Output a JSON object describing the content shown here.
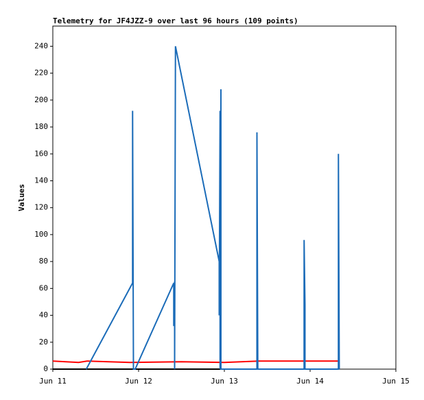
{
  "chart_data": {
    "type": "line",
    "title": "Telemetry for JF4JZZ-9 over last 96 hours (109 points)",
    "ylabel": "Values",
    "xlim": [
      11,
      15
    ],
    "xticks": [
      {
        "value": 11,
        "label": "Jun 11"
      },
      {
        "value": 12,
        "label": "Jun 12"
      },
      {
        "value": 13,
        "label": "Jun 13"
      },
      {
        "value": 14,
        "label": "Jun 14"
      },
      {
        "value": 15,
        "label": "Jun 15"
      }
    ],
    "ylim": [
      0,
      255
    ],
    "yticks": [
      0,
      20,
      40,
      60,
      80,
      100,
      120,
      140,
      160,
      180,
      200,
      220,
      240
    ],
    "series": [
      {
        "color": "#000000",
        "x": [
          11.0,
          14.33
        ],
        "values": [
          0,
          0
        ]
      },
      {
        "color": "#ff0000",
        "x": [
          11.0,
          11.3,
          11.4,
          11.9,
          12.5,
          13.0,
          13.4,
          14.33
        ],
        "values": [
          6,
          5,
          6,
          5,
          5.5,
          5,
          6,
          6
        ]
      },
      {
        "color": "#1a6bb8",
        "x": [
          11.39,
          11.93,
          11.93,
          11.94,
          11.96,
          12.41,
          12.41,
          12.42,
          12.42,
          12.43,
          12.94,
          12.94,
          12.95,
          12.95,
          12.96,
          12.96,
          13.38,
          13.38,
          13.39,
          13.93,
          13.93,
          13.94,
          13.94,
          14.33,
          14.33,
          14.34
        ],
        "values": [
          0,
          64,
          192,
          0,
          0,
          64,
          32,
          65,
          0,
          240,
          80,
          40,
          192,
          0,
          208,
          0,
          0,
          176,
          0,
          0,
          96,
          48,
          0,
          0,
          160,
          0
        ]
      }
    ]
  }
}
